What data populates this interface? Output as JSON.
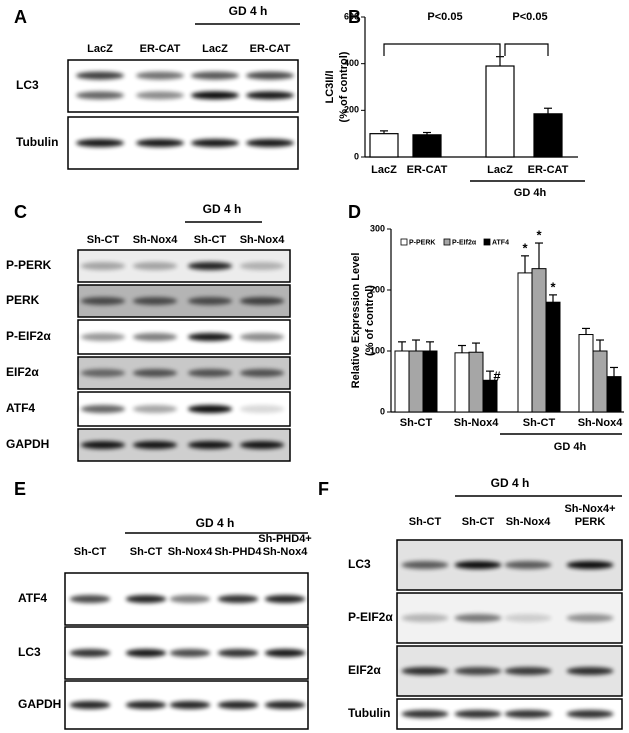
{
  "panels": {
    "A": {
      "letter": "A",
      "group_label": "GD 4 h",
      "lanes": [
        "LacZ",
        "ER-CAT",
        "LacZ",
        "ER-CAT"
      ],
      "rows": [
        "LC3",
        "Tubulin"
      ]
    },
    "C": {
      "letter": "C",
      "group_label": "GD 4 h",
      "lanes": [
        "Sh-CT",
        "Sh-Nox4",
        "Sh-CT",
        "Sh-Nox4"
      ],
      "rows": [
        "P-PERK",
        "PERK",
        "P-EIF2α",
        "EIF2α",
        "ATF4",
        "GAPDH"
      ]
    },
    "E": {
      "letter": "E",
      "group_label": "GD 4 h",
      "lanes": [
        "Sh-CT",
        "Sh-CT",
        "Sh-Nox4",
        "Sh-PHD4",
        [
          "Sh-PHD4+",
          "Sh-Nox4"
        ]
      ],
      "rows": [
        "ATF4",
        "LC3",
        "GAPDH"
      ]
    },
    "F": {
      "letter": "F",
      "group_label": "GD 4 h",
      "lanes": [
        "Sh-CT",
        "Sh-CT",
        "Sh-Nox4",
        [
          "Sh-Nox4+",
          "PERK"
        ]
      ],
      "rows": [
        "LC3",
        "P-EIF2α",
        "EIF2α",
        "Tubulin"
      ]
    }
  },
  "chart_data": [
    {
      "type": "bar",
      "label": "B",
      "ylabel": [
        "LC3II/I",
        "(% of control)"
      ],
      "categories": [
        "LacZ",
        "ER-CAT",
        "LacZ",
        "ER-CAT"
      ],
      "values": [
        100,
        95,
        390,
        185
      ],
      "errors": [
        12,
        10,
        40,
        24
      ],
      "colors": [
        "#ffffff",
        "#000000",
        "#ffffff",
        "#000000"
      ],
      "ylim": [
        0,
        600
      ],
      "yticks": [
        0,
        200,
        400,
        600
      ],
      "group_label": "GD 4h",
      "annotations": [
        "P<0.05",
        "P<0.05"
      ]
    },
    {
      "type": "grouped_bar",
      "label": "D",
      "ylabel": [
        "Relative Expression Level",
        "(% of control)"
      ],
      "categories": [
        "Sh-CT",
        "Sh-Nox4",
        "Sh-CT",
        "Sh-Nox4"
      ],
      "series": [
        {
          "name": "P-PERK",
          "color": "#ffffff",
          "values": [
            100,
            97,
            228,
            127
          ],
          "errors": [
            15,
            12,
            28,
            10
          ]
        },
        {
          "name": "P-EIf2α",
          "color": "#a6a6a6",
          "values": [
            100,
            98,
            235,
            100
          ],
          "errors": [
            18,
            15,
            42,
            18
          ]
        },
        {
          "name": "ATF4",
          "color": "#000000",
          "values": [
            100,
            52,
            180,
            58
          ],
          "errors": [
            15,
            15,
            12,
            15
          ]
        }
      ],
      "ylim": [
        0,
        300
      ],
      "yticks": [
        0,
        100,
        200,
        300
      ],
      "group_label": "GD  4h",
      "annotations": [
        "#",
        "*",
        "*",
        "*"
      ]
    }
  ]
}
